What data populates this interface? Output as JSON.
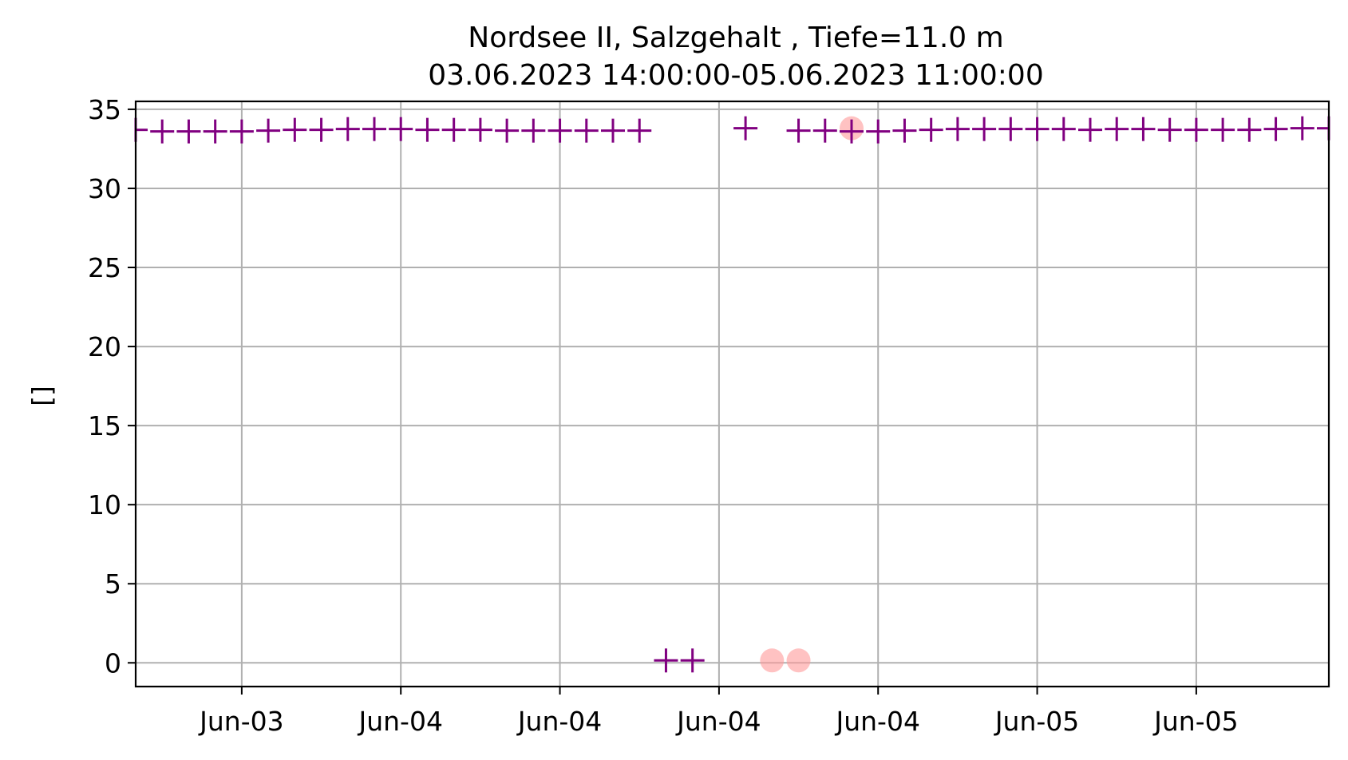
{
  "chart_data": {
    "type": "scatter",
    "title": "Nordsee II, Salzgehalt , Tiefe=11.0 m",
    "subtitle": "03.06.2023 14:00:00-05.06.2023 11:00:00",
    "xlabel": "",
    "ylabel": "[]",
    "ylim": [
      -1.5,
      35.5
    ],
    "xlim_hours": [
      -4.0,
      41.0
    ],
    "grid": true,
    "yticks": [
      0,
      5,
      10,
      15,
      20,
      25,
      30,
      35
    ],
    "xticks": [
      {
        "hour": 0,
        "label": "Jun-03"
      },
      {
        "hour": 6,
        "label": "Jun-04"
      },
      {
        "hour": 12,
        "label": "Jun-04"
      },
      {
        "hour": 18,
        "label": "Jun-04"
      },
      {
        "hour": 24,
        "label": "Jun-04"
      },
      {
        "hour": 30,
        "label": "Jun-05"
      },
      {
        "hour": 36,
        "label": "Jun-05"
      }
    ],
    "series": [
      {
        "marker": "+",
        "color": "#800080",
        "points_hour": [
          -4,
          -3,
          -2,
          -1,
          0,
          1,
          2,
          3,
          4,
          5,
          6,
          7,
          8,
          9,
          10,
          11,
          12,
          13,
          14,
          15,
          16,
          17,
          18,
          19,
          20,
          21,
          22,
          23,
          24,
          25,
          26,
          27,
          28,
          29,
          30,
          31,
          32,
          33,
          34,
          35,
          36,
          37,
          38,
          39,
          40,
          41
        ],
        "points_value": [
          33.7,
          33.6,
          33.6,
          33.6,
          33.6,
          33.65,
          33.7,
          33.7,
          33.75,
          33.75,
          33.75,
          33.7,
          33.7,
          33.7,
          33.65,
          33.65,
          33.65,
          33.65,
          33.65,
          33.65,
          0.15,
          0.15,
          null,
          33.8,
          null,
          33.65,
          33.65,
          33.6,
          33.6,
          33.65,
          33.7,
          33.75,
          33.75,
          33.75,
          33.75,
          33.75,
          33.7,
          33.75,
          33.75,
          33.7,
          33.7,
          33.7,
          33.7,
          33.75,
          33.8,
          33.8
        ]
      }
    ],
    "flagged": [
      {
        "hour": 20,
        "value": 0.15
      },
      {
        "hour": 21,
        "value": 0.15
      },
      {
        "hour": 23,
        "value": 33.8
      }
    ],
    "flag_color": "#ff9999"
  }
}
